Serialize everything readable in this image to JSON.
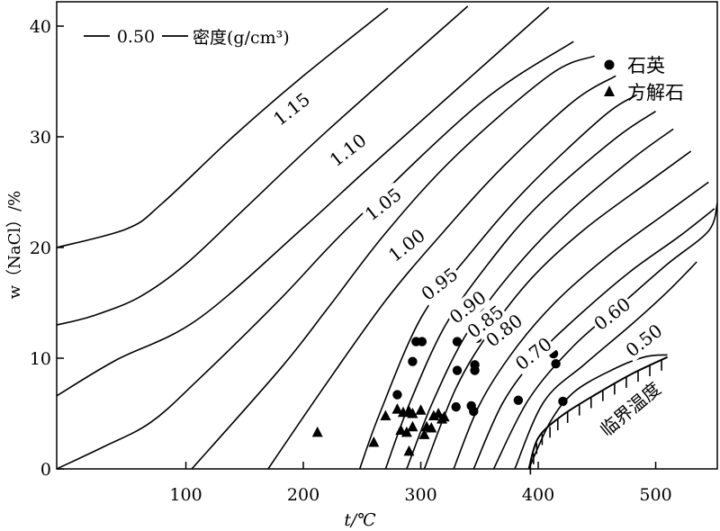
{
  "chart_data": {
    "type": "line",
    "title": "",
    "xlabel": "t/℃",
    "ylabel": "w（NaCl）/%",
    "xlim": [
      -10,
      560
    ],
    "ylim": [
      0,
      42
    ],
    "xticks": [
      100,
      200,
      300,
      400,
      500
    ],
    "yticks": [
      0,
      10,
      20,
      30,
      40
    ],
    "grid": false,
    "legend_inline": {
      "sample_value": "0.50",
      "label": "密度(g/cm³)"
    },
    "legend": {
      "position": "top-right",
      "entries": [
        {
          "marker": "circle",
          "label": "石英"
        },
        {
          "marker": "triangle",
          "label": "方解石"
        }
      ]
    },
    "isochores": [
      {
        "label": "1.15",
        "points": [
          [
            -10,
            20
          ],
          [
            50,
            21.7
          ],
          [
            80,
            24
          ],
          [
            140,
            30
          ],
          [
            200,
            35.5
          ],
          [
            272,
            41.6
          ]
        ]
      },
      {
        "label": "1.10",
        "points": [
          [
            -10,
            13
          ],
          [
            20,
            13.8
          ],
          [
            60,
            15.5
          ],
          [
            100,
            18.5
          ],
          [
            150,
            23.5
          ],
          [
            220,
            30.5
          ],
          [
            340,
            41.8
          ]
        ]
      },
      {
        "label": "1.05",
        "points": [
          [
            -10,
            6.6
          ],
          [
            40,
            9.8
          ],
          [
            110,
            13.5
          ],
          [
            200,
            21.8
          ],
          [
            260,
            27.6
          ],
          [
            409,
            41.7
          ]
        ]
      },
      {
        "label": "1.00",
        "points": [
          [
            -10,
            0
          ],
          [
            30,
            2
          ],
          [
            70,
            4.2
          ],
          [
            110,
            8
          ],
          [
            180,
            15.3
          ],
          [
            240,
            22
          ],
          [
            350,
            33
          ],
          [
            430,
            38.6
          ]
        ]
      },
      {
        "label": "0.95",
        "points": [
          [
            105,
            0
          ],
          [
            180,
            9
          ],
          [
            220,
            14.4
          ],
          [
            270,
            21.3
          ],
          [
            330,
            28.3
          ],
          [
            410,
            35.6
          ],
          [
            448,
            37.3
          ]
        ]
      },
      {
        "label": "0.90",
        "points": [
          [
            170,
            0
          ],
          [
            215,
            7
          ],
          [
            270,
            15.2
          ],
          [
            320,
            21.5
          ],
          [
            370,
            27.3
          ],
          [
            430,
            33.2
          ],
          [
            466,
            35.5
          ]
        ]
      },
      {
        "label": "0.85",
        "points": [
          [
            248,
            0
          ],
          [
            265,
            5
          ],
          [
            300,
            13.6
          ],
          [
            340,
            19.2
          ],
          [
            390,
            25.3
          ],
          [
            455,
            31.8
          ],
          [
            484,
            33.8
          ]
        ]
      },
      {
        "label": "0.80",
        "points": [
          [
            270,
            0
          ],
          [
            290,
            5.8
          ],
          [
            320,
            12.8
          ],
          [
            355,
            18.2
          ],
          [
            400,
            23.8
          ],
          [
            465,
            29.8
          ],
          [
            500,
            32.3
          ]
        ]
      },
      {
        "label": "",
        "points": [
          [
            288,
            0
          ],
          [
            310,
            6
          ],
          [
            340,
            12.4
          ],
          [
            380,
            18.1
          ],
          [
            425,
            23.1
          ],
          [
            480,
            28
          ],
          [
            515,
            30.7
          ]
        ]
      },
      {
        "label": "0.70",
        "points": [
          [
            303,
            0
          ],
          [
            330,
            7.3
          ],
          [
            358,
            12.3
          ],
          [
            395,
            17.3
          ],
          [
            440,
            21.7
          ],
          [
            495,
            26
          ],
          [
            530,
            28.7
          ]
        ]
      },
      {
        "label": "",
        "points": [
          [
            328,
            0
          ],
          [
            350,
            5.8
          ],
          [
            380,
            10.8
          ],
          [
            415,
            15.1
          ],
          [
            460,
            19.3
          ],
          [
            510,
            23.2
          ],
          [
            545,
            25.9
          ]
        ]
      },
      {
        "label": "",
        "points": [
          [
            345,
            0
          ],
          [
            370,
            6
          ],
          [
            400,
            10.3
          ],
          [
            435,
            13.9
          ],
          [
            478,
            17.8
          ],
          [
            520,
            21
          ],
          [
            550,
            23.5
          ]
        ]
      },
      {
        "label": "0.60",
        "points": [
          [
            362,
            0
          ],
          [
            392,
            6.3
          ],
          [
            430,
            11.1
          ],
          [
            470,
            14.8
          ],
          [
            510,
            18.5
          ],
          [
            545,
            21.5
          ],
          [
            560,
            24
          ]
        ]
      },
      {
        "label": "",
        "points": [
          [
            380,
            0
          ],
          [
            405,
            6.1
          ],
          [
            440,
            9.5
          ],
          [
            480,
            13.1
          ],
          [
            510,
            16
          ],
          [
            535,
            18.7
          ]
        ]
      },
      {
        "label": "0.50",
        "points": [
          [
            392,
            0
          ],
          [
            410,
            4.2
          ],
          [
            430,
            6.9
          ],
          [
            460,
            8.8
          ],
          [
            490,
            10.1
          ],
          [
            510,
            10.3
          ]
        ]
      }
    ],
    "critical_curve": {
      "label": "临界温度",
      "points": [
        [
          392,
          0
        ],
        [
          400,
          2.8
        ],
        [
          420,
          4.8
        ],
        [
          450,
          6.8
        ],
        [
          480,
          8.6
        ],
        [
          510,
          10.1
        ]
      ]
    },
    "series": [
      {
        "name": "石英",
        "marker": "circle",
        "points": [
          [
            296,
            11.5
          ],
          [
            301,
            11.5
          ],
          [
            331,
            11.5
          ],
          [
            348,
            11.8
          ],
          [
            346,
            9.4
          ],
          [
            346,
            8.9
          ],
          [
            331,
            8.9
          ],
          [
            293,
            9.7
          ],
          [
            280,
            6.7
          ],
          [
            330,
            5.6
          ],
          [
            343,
            5.7
          ],
          [
            345,
            5.2
          ],
          [
            383,
            6.2
          ],
          [
            393,
            10.6
          ],
          [
            407,
            10.8
          ],
          [
            413,
            10.4
          ],
          [
            415,
            9.5
          ],
          [
            421,
            6.1
          ]
        ]
      },
      {
        "name": "方解石",
        "marker": "triangle",
        "points": [
          [
            212,
            3.3
          ],
          [
            260,
            2.4
          ],
          [
            270,
            4.8
          ],
          [
            280,
            5.4
          ],
          [
            285,
            5.1
          ],
          [
            283,
            3.5
          ],
          [
            288,
            3.3
          ],
          [
            290,
            5.2
          ],
          [
            293,
            3.8
          ],
          [
            290,
            1.6
          ],
          [
            300,
            5.3
          ],
          [
            303,
            3.1
          ],
          [
            305,
            3.8
          ],
          [
            309,
            3.7
          ],
          [
            311,
            4.8
          ],
          [
            315,
            5
          ],
          [
            320,
            4.7
          ],
          [
            318,
            4.5
          ],
          [
            293,
            5
          ]
        ]
      }
    ]
  }
}
